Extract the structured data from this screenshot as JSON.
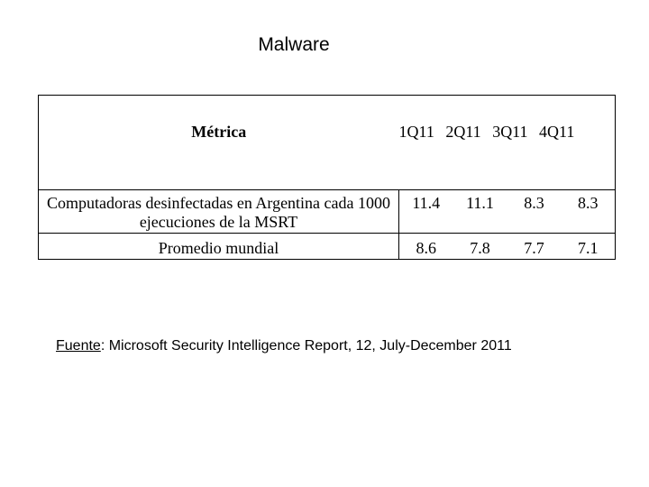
{
  "title": "Malware",
  "table": {
    "metric_header": "Métrica",
    "quarters": [
      "1Q11",
      "2Q11",
      "3Q11",
      "4Q11"
    ],
    "rows": [
      {
        "label": "Computadoras desinfectadas en Argentina cada 1000 ejecuciones de la MSRT",
        "values": [
          "11.4",
          "11.1",
          "8.3",
          "8.3"
        ]
      },
      {
        "label": "Promedio mundial",
        "values": [
          "8.6",
          "7.8",
          "7.7",
          "7.1"
        ]
      }
    ]
  },
  "source": {
    "label": "Fuente",
    "separator": ":",
    "text": " Microsoft Security Intelligence Report, 12, July-December 2011"
  }
}
